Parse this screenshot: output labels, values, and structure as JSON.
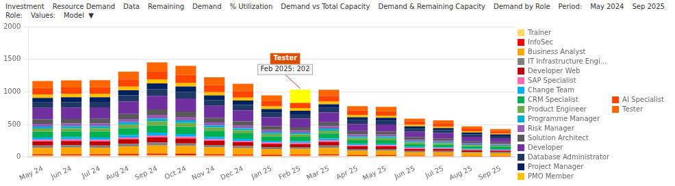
{
  "chart_data": {
    "type": "bar",
    "stacked": true,
    "grid": true,
    "legend": "right",
    "categories": [
      "May 24",
      "Jun 24",
      "Jul 24",
      "Aug 24",
      "Sep 24",
      "Oct 24",
      "Nov 24",
      "Dec 24",
      "Jan 25",
      "Feb 25",
      "Mar 25",
      "Apr 25",
      "May 25",
      "Jun 25",
      "Jul 25",
      "Aug 25",
      "Sep 25"
    ],
    "ylim": [
      0,
      2000
    ],
    "yticks": [
      0,
      500,
      1000,
      1500,
      2000
    ],
    "series": [
      {
        "name": "Trainer",
        "color": "#FFD966",
        "values": [
          25,
          25,
          25,
          28,
          32,
          30,
          25,
          22,
          20,
          22,
          25,
          18,
          18,
          15,
          15,
          12,
          12
        ]
      },
      {
        "name": "InfoSec",
        "color": "#FF0000",
        "values": [
          18,
          18,
          18,
          20,
          22,
          20,
          18,
          16,
          15,
          15,
          18,
          12,
          12,
          10,
          10,
          8,
          8
        ]
      },
      {
        "name": "Business Analyst",
        "color": "#FFA500",
        "values": [
          100,
          105,
          100,
          115,
          125,
          120,
          108,
          100,
          90,
          90,
          100,
          68,
          68,
          50,
          50,
          45,
          40
        ]
      },
      {
        "name": "IT Infrastructure Engi...",
        "color": "#808080",
        "values": [
          35,
          35,
          35,
          40,
          45,
          40,
          35,
          32,
          30,
          28,
          35,
          25,
          25,
          20,
          20,
          16,
          16
        ]
      },
      {
        "name": "Developer Web",
        "color": "#C00000",
        "values": [
          65,
          65,
          65,
          72,
          78,
          75,
          65,
          58,
          50,
          45,
          55,
          42,
          42,
          32,
          30,
          25,
          25
        ]
      },
      {
        "name": "SAP Specialist",
        "color": "#FF69B4",
        "values": [
          25,
          25,
          25,
          28,
          32,
          30,
          25,
          22,
          20,
          20,
          25,
          18,
          18,
          14,
          12,
          10,
          10
        ]
      },
      {
        "name": "Change Team",
        "color": "#00B0F0",
        "values": [
          35,
          35,
          35,
          38,
          42,
          40,
          35,
          30,
          25,
          25,
          28,
          20,
          18,
          16,
          14,
          12,
          12
        ]
      },
      {
        "name": "CRM Specialist",
        "color": "#00B050",
        "values": [
          85,
          85,
          92,
          100,
          110,
          108,
          92,
          85,
          68,
          68,
          76,
          58,
          58,
          42,
          40,
          35,
          32
        ]
      },
      {
        "name": "Product Engineer",
        "color": "#70AD47",
        "values": [
          50,
          50,
          50,
          58,
          65,
          62,
          52,
          48,
          40,
          38,
          46,
          36,
          36,
          28,
          25,
          20,
          20
        ]
      },
      {
        "name": "Programme Manager",
        "color": "#00B0D0",
        "values": [
          32,
          32,
          32,
          36,
          42,
          40,
          32,
          30,
          28,
          25,
          30,
          24,
          22,
          18,
          16,
          14,
          14
        ]
      },
      {
        "name": "Risk Manager",
        "color": "#9B59B6",
        "values": [
          42,
          42,
          42,
          50,
          55,
          52,
          45,
          40,
          34,
          34,
          38,
          32,
          30,
          24,
          20,
          18,
          16
        ]
      },
      {
        "name": "Solution Architect",
        "color": "#595959",
        "values": [
          68,
          68,
          68,
          76,
          85,
          82,
          70,
          65,
          54,
          50,
          58,
          45,
          45,
          36,
          32,
          28,
          25
        ]
      },
      {
        "name": "Developer",
        "color": "#7030A0",
        "values": [
          175,
          175,
          175,
          190,
          205,
          200,
          185,
          170,
          140,
          130,
          150,
          110,
          110,
          85,
          85,
          70,
          62
        ]
      },
      {
        "name": "Database Administrator",
        "color": "#1F3864",
        "values": [
          85,
          85,
          85,
          95,
          105,
          102,
          88,
          82,
          68,
          68,
          72,
          58,
          55,
          45,
          42,
          36,
          32
        ]
      },
      {
        "name": "Project Manager",
        "color": "#002060",
        "values": [
          68,
          72,
          72,
          78,
          88,
          82,
          72,
          68,
          55,
          52,
          55,
          46,
          46,
          36,
          34,
          28,
          25
        ]
      },
      {
        "name": "PMO Member",
        "color": "#FFC000",
        "values": [
          50,
          50,
          50,
          55,
          62,
          58,
          50,
          45,
          42,
          42,
          42,
          34,
          32,
          24,
          24,
          20,
          16
        ]
      },
      {
        "name": "AI Specialist",
        "color": "#FF4500",
        "values": [
          100,
          100,
          100,
          110,
          122,
          120,
          108,
          100,
          80,
          80,
          85,
          68,
          68,
          50,
          50,
          40,
          34
        ]
      },
      {
        "name": "Tester",
        "color": "#FF6600",
        "colors": [
          "#FF6600",
          "#FF6600",
          "#FF6600",
          "#FF6600",
          "#FF6600",
          "#FF6600",
          "#FF6600",
          "#FF6600",
          "#FF6600",
          "yellow",
          "#FF6600",
          "#FF6600",
          "#FF6600",
          "#FF6600",
          "#FF6600",
          "#FF6600",
          "#FF6600"
        ],
        "values": [
          110,
          110,
          110,
          122,
          138,
          138,
          120,
          112,
          88,
          202,
          96,
          68,
          68,
          46,
          46,
          36,
          32
        ]
      }
    ],
    "annotations": [
      {
        "text": "Investment"
      },
      {
        "text": "Resource Demand"
      },
      {
        "text": "Data"
      },
      {
        "text": "Remaining"
      },
      {
        "text": "Demand"
      },
      {
        "text": "% Utilization"
      },
      {
        "text": "Demand vs Total Capacity"
      },
      {
        "text": "Demand & Remaining Capacity"
      },
      {
        "text": "Demand by Role"
      },
      {
        "text": "Period:"
      },
      {
        "text": "May 2024"
      },
      {
        "text": "Sep 2025"
      },
      {
        "text": "Role:"
      },
      {
        "text": "Values:"
      },
      {
        "text": "Model  ▼"
      },
      {
        "text": "Tester",
        "x": "Feb 25"
      },
      {
        "text": "Feb 2025: 202",
        "x": "Feb 25"
      }
    ]
  }
}
